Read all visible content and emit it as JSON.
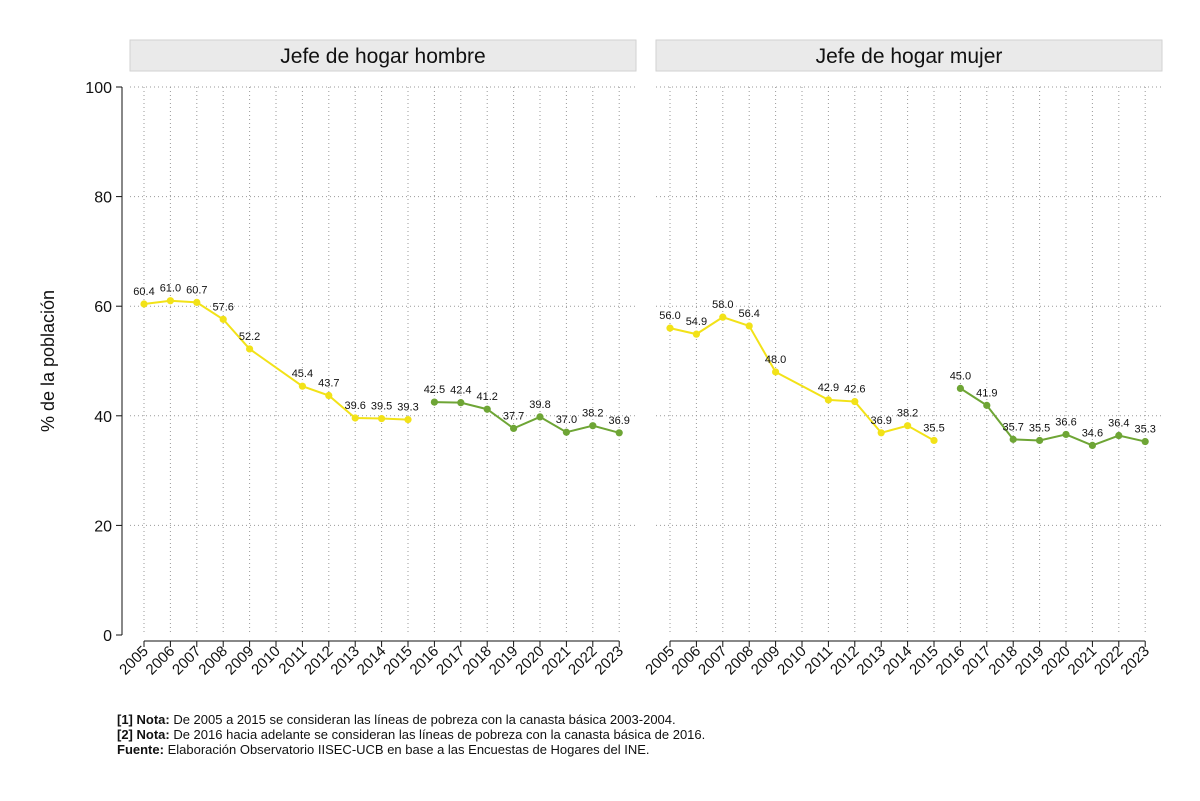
{
  "chart_data": {
    "type": "line",
    "ylabel": "% de la población",
    "ylim": [
      0,
      100
    ],
    "yticks": [
      0,
      20,
      40,
      60,
      80,
      100
    ],
    "colors": {
      "series1": "#f2e218",
      "series2": "#6ea535"
    },
    "categories": [
      "2005",
      "2006",
      "2007",
      "2008",
      "2009",
      "2010",
      "2011",
      "2012",
      "2013",
      "2014",
      "2015",
      "2016",
      "2017",
      "2018",
      "2019",
      "2020",
      "2021",
      "2022",
      "2023"
    ],
    "panels": [
      {
        "title": "Jefe de hogar hombre",
        "series": [
          {
            "name": "canasta básica 2003-2004",
            "color": "#f2e218",
            "points": [
              [
                "2005",
                60.4,
                "60.4"
              ],
              [
                "2006",
                61.0,
                "61.0"
              ],
              [
                "2007",
                60.7,
                "60.7"
              ],
              [
                "2008",
                57.6,
                "57.6"
              ],
              [
                "2009",
                52.2,
                "52.2"
              ],
              [
                "2011",
                45.4,
                "45.4"
              ],
              [
                "2012",
                43.7,
                "43.7"
              ],
              [
                "2013",
                39.6,
                "39.6"
              ],
              [
                "2014",
                39.5,
                "39.5"
              ],
              [
                "2015",
                39.3,
                "39.3"
              ]
            ]
          },
          {
            "name": "canasta básica 2016",
            "color": "#6ea535",
            "points": [
              [
                "2016",
                42.5,
                "42.5"
              ],
              [
                "2017",
                42.4,
                "42.4"
              ],
              [
                "2018",
                41.2,
                "41.2"
              ],
              [
                "2019",
                37.7,
                "37.7"
              ],
              [
                "2020",
                39.8,
                "39.8"
              ],
              [
                "2021",
                37.0,
                "37.0"
              ],
              [
                "2022",
                38.2,
                "38.2"
              ],
              [
                "2023",
                36.9,
                "36.9"
              ]
            ]
          }
        ]
      },
      {
        "title": "Jefe de hogar mujer",
        "series": [
          {
            "name": "canasta básica 2003-2004",
            "color": "#f2e218",
            "points": [
              [
                "2005",
                56.0,
                "56.0"
              ],
              [
                "2006",
                54.9,
                "54.9"
              ],
              [
                "2007",
                58.0,
                "58.0"
              ],
              [
                "2008",
                56.4,
                "56.4"
              ],
              [
                "2009",
                48.0,
                "48.0"
              ],
              [
                "2011",
                42.9,
                "42.9"
              ],
              [
                "2012",
                42.6,
                "42.6"
              ],
              [
                "2013",
                36.9,
                "36.9"
              ],
              [
                "2014",
                38.2,
                "38.2"
              ],
              [
                "2015",
                35.5,
                "35.5"
              ]
            ]
          },
          {
            "name": "canasta básica 2016",
            "color": "#6ea535",
            "points": [
              [
                "2016",
                45.0,
                "45.0"
              ],
              [
                "2017",
                41.9,
                "41.9"
              ],
              [
                "2018",
                35.7,
                "35.7"
              ],
              [
                "2019",
                35.5,
                "35.5"
              ],
              [
                "2020",
                36.6,
                "36.6"
              ],
              [
                "2021",
                34.6,
                "34.6"
              ],
              [
                "2022",
                36.4,
                "36.4"
              ],
              [
                "2023",
                35.3,
                "35.3"
              ]
            ]
          }
        ]
      }
    ]
  },
  "notes": [
    {
      "label": "[1] Nota:",
      "text": " De 2005 a 2015 se consideran las líneas de pobreza con la canasta básica 2003-2004."
    },
    {
      "label": "[2] Nota:",
      "text": " De 2016 hacia adelante se consideran las líneas de pobreza con la canasta básica de 2016."
    },
    {
      "label": "Fuente:",
      "text": " Elaboración Observatorio IISEC-UCB en base a las Encuestas de Hogares del INE."
    }
  ]
}
